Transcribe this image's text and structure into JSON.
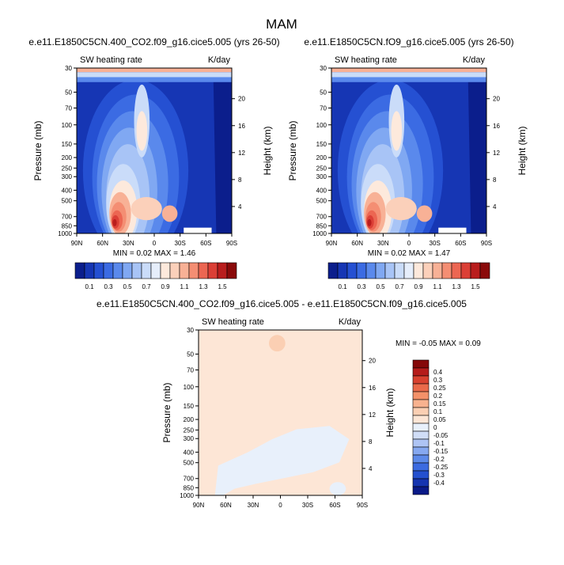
{
  "figure": {
    "title": "MAM"
  },
  "colors": {
    "absolute_scale": [
      "#0b1e8c",
      "#1636b4",
      "#2550d2",
      "#3b6be3",
      "#5a89ec",
      "#80a8f2",
      "#a8c4f6",
      "#cadcf9",
      "#e6eefb",
      "#fde9dc",
      "#fbd0ba",
      "#f8b196",
      "#f48e73",
      "#ec6652",
      "#db3f36",
      "#b91d1d",
      "#8a0a0a"
    ],
    "diff_scale": [
      "#0a1a88",
      "#1534b0",
      "#2450cf",
      "#3c6be0",
      "#5d8ae9",
      "#86a8f0",
      "#aec4f4",
      "#d0ddf7",
      "#e8f0fb",
      "#fde6d6",
      "#fbcfb3",
      "#f8b28f",
      "#f39169",
      "#ea6a4a",
      "#d8412f",
      "#b51c1a",
      "#850909"
    ]
  },
  "panels": [
    {
      "id": "control",
      "title": "e.e11.E1850C5CN.400_CO2.f09_g16.cice5.005 (yrs 26-50)",
      "left_label": "SW heating rate",
      "right_label": "K/day",
      "stats": {
        "min_label": "MIN =",
        "min": "0.02",
        "max_label": "MAX =",
        "max": "1.46"
      }
    },
    {
      "id": "perturbed",
      "title": "e.e11.E1850C5CN.fO9_g16.cice5.005 (yrs 26-50)",
      "left_label": "SW heating rate",
      "right_label": "K/day",
      "stats": {
        "min_label": "MIN =",
        "min": "0.02",
        "max_label": "MAX =",
        "max": "1.47"
      }
    },
    {
      "id": "difference",
      "title": "e.e11.E1850C5CN.400_CO2.f09_g16.cice5.005 - e.e11.E1850C5CN.f09_g16.cice5.005",
      "left_label": "SW heating rate",
      "right_label": "K/day",
      "stats": {
        "min_label": "MIN =",
        "min": "-0.05",
        "max_label": "MAX =",
        "max": "0.09"
      }
    }
  ],
  "chart_data": [
    {
      "type": "heatmap",
      "title": "e.e11.E1850C5CN.400_CO2.f09_g16.cice5.005 (yrs 26-50)",
      "variable": "SW heating rate",
      "units": "K/day",
      "xlabel": "",
      "ylabel": "Pressure (mb)",
      "ylabel_right": "Height (km)",
      "x_ticks": [
        "90N",
        "60N",
        "30N",
        "0",
        "30S",
        "60S",
        "90S"
      ],
      "y_ticks": [
        "30",
        "50",
        "70",
        "100",
        "150",
        "200",
        "250",
        "300",
        "400",
        "500",
        "700",
        "850",
        "1000"
      ],
      "y_ticks_right": [
        "20",
        "16",
        "12",
        "8",
        "4"
      ],
      "colorbar_levels": [
        "0.1",
        "0.3",
        "0.5",
        "0.7",
        "0.9",
        "1.1",
        "1.3",
        "1.5"
      ],
      "min": 0.02,
      "max": 1.46
    },
    {
      "type": "heatmap",
      "title": "e.e11.E1850C5CN.fO9_g16.cice5.005 (yrs 26-50)",
      "variable": "SW heating rate",
      "units": "K/day",
      "ylabel": "Pressure (mb)",
      "ylabel_right": "Height (km)",
      "x_ticks": [
        "90N",
        "60N",
        "30N",
        "0",
        "30S",
        "60S",
        "90S"
      ],
      "y_ticks": [
        "30",
        "50",
        "70",
        "100",
        "150",
        "200",
        "250",
        "300",
        "400",
        "500",
        "700",
        "850",
        "1000"
      ],
      "y_ticks_right": [
        "20",
        "16",
        "12",
        "8",
        "4"
      ],
      "colorbar_levels": [
        "0.1",
        "0.3",
        "0.5",
        "0.7",
        "0.9",
        "1.1",
        "1.3",
        "1.5"
      ],
      "min": 0.02,
      "max": 1.47
    },
    {
      "type": "heatmap",
      "title": "e.e11.E1850C5CN.400_CO2.f09_g16.cice5.005 - e.e11.E1850C5CN.f09_g16.cice5.005",
      "variable": "SW heating rate",
      "units": "K/day",
      "ylabel": "Pressure (mb)",
      "ylabel_right": "Height (km)",
      "x_ticks": [
        "90N",
        "60N",
        "30N",
        "0",
        "30S",
        "60S",
        "90S"
      ],
      "y_ticks": [
        "30",
        "50",
        "70",
        "100",
        "150",
        "200",
        "250",
        "300",
        "400",
        "500",
        "700",
        "850",
        "1000"
      ],
      "y_ticks_right": [
        "20",
        "16",
        "12",
        "8",
        "4"
      ],
      "colorbar_levels": [
        "0.4",
        "0.3",
        "0.25",
        "0.2",
        "0.15",
        "0.1",
        "0.05",
        "0",
        "-0.05",
        "-0.1",
        "-0.15",
        "-0.2",
        "-0.25",
        "-0.3",
        "-0.4"
      ],
      "min": -0.05,
      "max": 0.09
    }
  ]
}
